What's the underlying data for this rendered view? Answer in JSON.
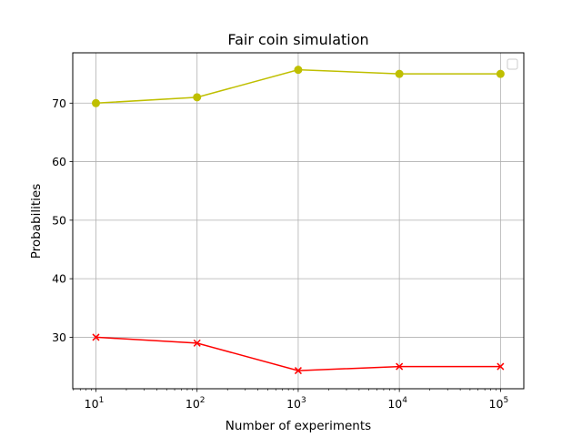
{
  "chart_data": {
    "type": "line",
    "title": "Fair coin simulation",
    "xlabel": "Number of experiments",
    "ylabel": "Probabilities",
    "xscale": "log",
    "x": [
      10,
      100,
      1000,
      10000,
      100000
    ],
    "x_tick_labels": [
      {
        "base": "10",
        "exp": "1"
      },
      {
        "base": "10",
        "exp": "2"
      },
      {
        "base": "10",
        "exp": "3"
      },
      {
        "base": "10",
        "exp": "4"
      },
      {
        "base": "10",
        "exp": "5"
      }
    ],
    "y_ticks": [
      30,
      40,
      50,
      60,
      70
    ],
    "ylim": [
      21.2,
      78.6
    ],
    "grid": true,
    "legend": "top-right (empty)",
    "series": [
      {
        "values": [
          70,
          71,
          75.7,
          75,
          75
        ],
        "color": "#bfbf00",
        "marker": "circle"
      },
      {
        "values": [
          30,
          29,
          24.3,
          25,
          25
        ],
        "color": "#ff0000",
        "marker": "x"
      }
    ]
  }
}
